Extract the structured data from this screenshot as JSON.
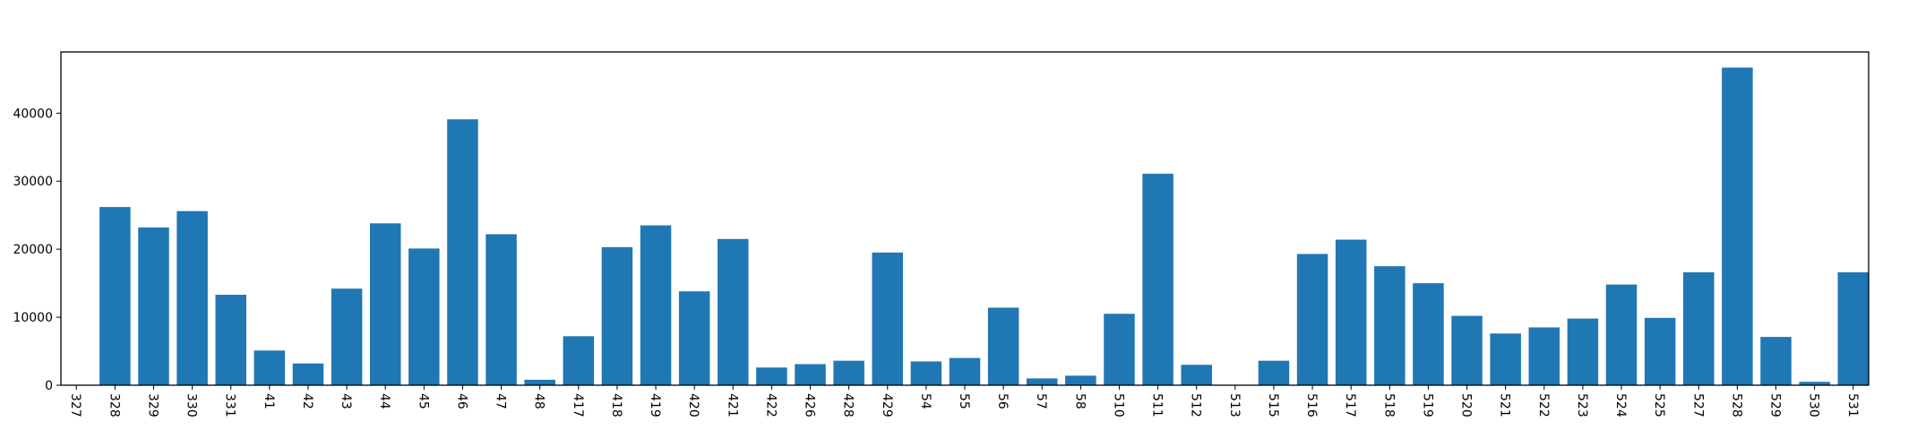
{
  "chart_data": {
    "type": "bar",
    "title": "",
    "xlabel": "",
    "ylabel": "",
    "categories": [
      "327",
      "328",
      "329",
      "330",
      "331",
      "41",
      "42",
      "43",
      "44",
      "45",
      "46",
      "47",
      "48",
      "417",
      "418",
      "419",
      "420",
      "421",
      "422",
      "426",
      "428",
      "429",
      "54",
      "55",
      "56",
      "57",
      "58",
      "510",
      "511",
      "512",
      "513",
      "515",
      "516",
      "517",
      "518",
      "519",
      "520",
      "521",
      "522",
      "523",
      "524",
      "525",
      "527",
      "528",
      "529",
      "530",
      "531"
    ],
    "values": [
      0,
      26200,
      23200,
      25600,
      13300,
      5100,
      3200,
      14200,
      23800,
      20100,
      39100,
      22200,
      800,
      7200,
      20300,
      23500,
      13800,
      21500,
      2600,
      3100,
      3600,
      19500,
      3500,
      4000,
      11400,
      1000,
      1400,
      10500,
      31100,
      3000,
      0,
      3600,
      19300,
      21400,
      17500,
      15000,
      10200,
      7600,
      8500,
      9800,
      14800,
      9900,
      16600,
      46700,
      7100,
      500,
      16600
    ],
    "ylim": [
      0,
      49000
    ],
    "yticks": [
      0,
      10000,
      20000,
      30000,
      40000
    ],
    "ytick_labels": [
      "0",
      "10000",
      "20000",
      "30000",
      "40000"
    ],
    "grid": false,
    "legend": "none",
    "bar_color": "#1f77b4"
  }
}
